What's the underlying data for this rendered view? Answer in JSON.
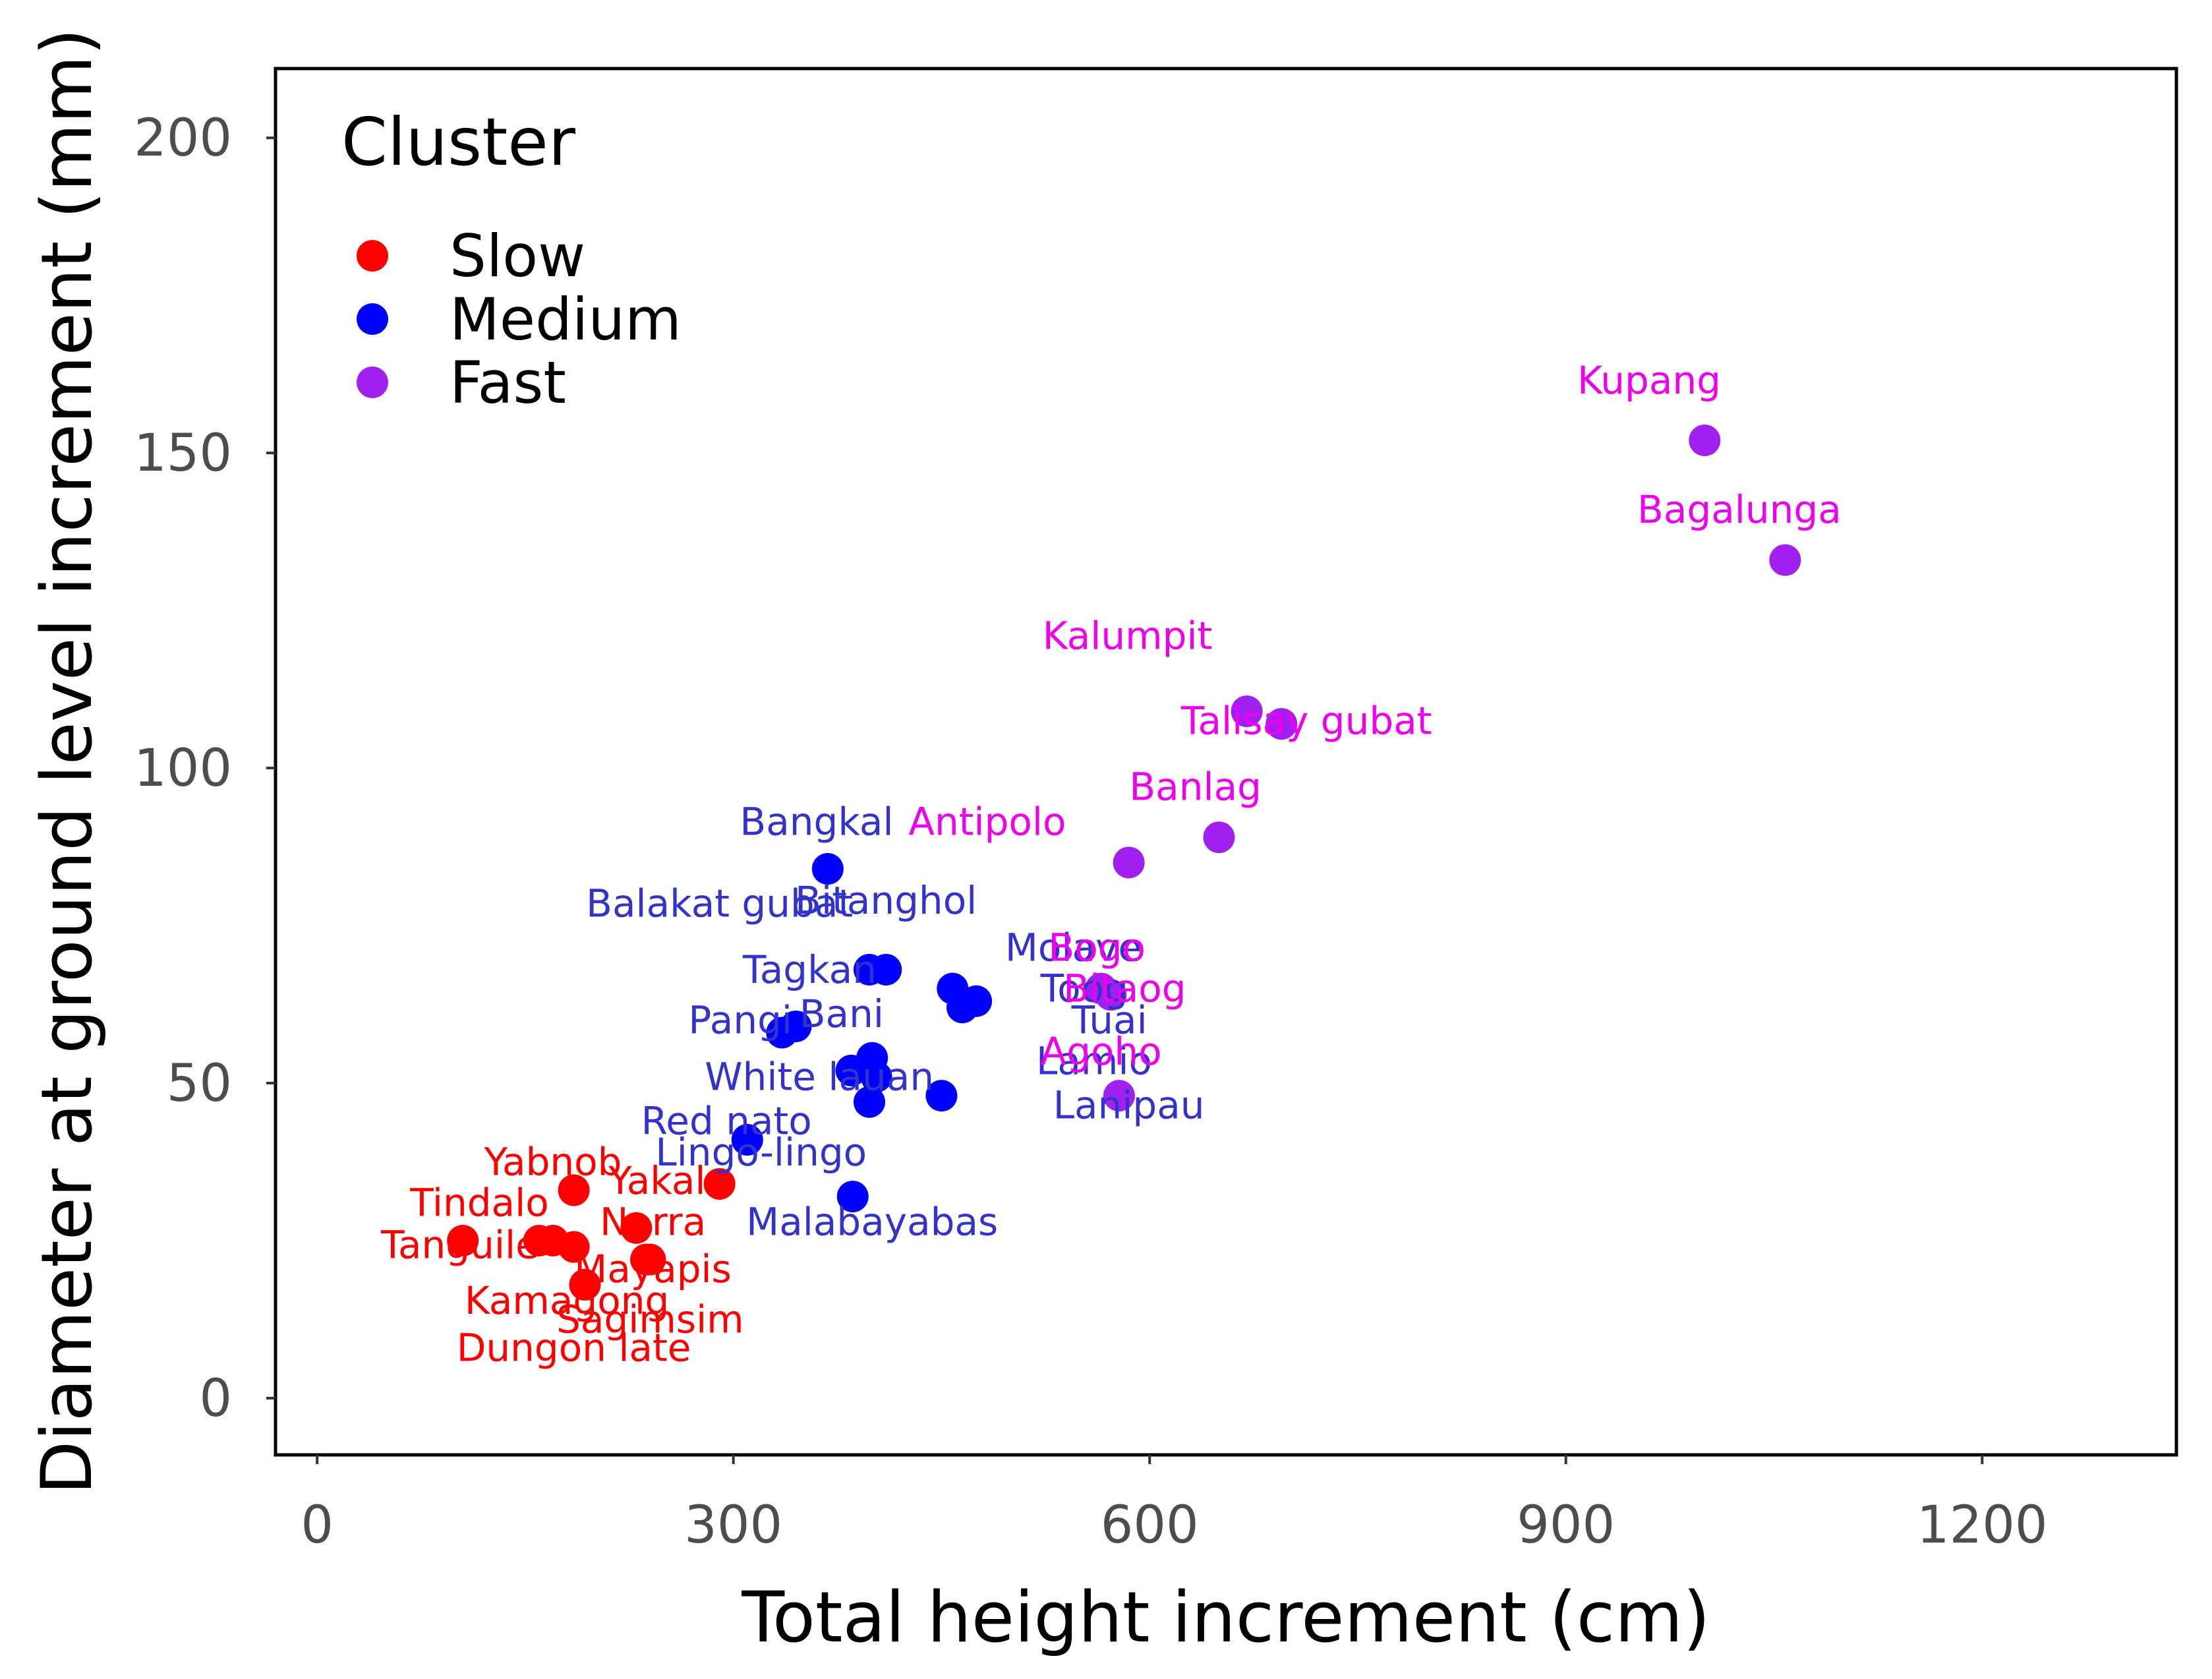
{
  "chart_data": {
    "type": "scatter",
    "xlabel": "Total height increment (cm)",
    "ylabel": "Diameter at ground level increment (mm)",
    "xlim": [
      -30,
      1340
    ],
    "ylim": [
      -9,
      211
    ],
    "xticks": [
      0,
      300,
      600,
      900,
      1200
    ],
    "yticks": [
      0,
      50,
      100,
      150,
      200
    ],
    "legend": {
      "title": "Cluster",
      "position": "top-left",
      "entries": [
        {
          "name": "Slow",
          "color": "#ff0000"
        },
        {
          "name": "Medium",
          "color": "#0000ff"
        },
        {
          "name": "Fast",
          "color": "#a020f0"
        }
      ]
    },
    "label_colors": {
      "Slow": "#ff0000",
      "Medium": "#3333cc",
      "Fast": "#ee00ee"
    },
    "series": [
      {
        "name": "Slow",
        "points": [
          {
            "x": 105,
            "y": 25,
            "label": "Tanguile"
          },
          {
            "x": 160,
            "y": 25,
            "label": "Tindalo"
          },
          {
            "x": 170,
            "y": 25,
            "label": "Kamagong"
          },
          {
            "x": 185,
            "y": 24,
            "label": "Dungon late"
          },
          {
            "x": 185,
            "y": 33,
            "label": "Yabnob"
          },
          {
            "x": 193,
            "y": 18,
            "label": "Dungon late"
          },
          {
            "x": 230,
            "y": 27,
            "label": "Yakal"
          },
          {
            "x": 237,
            "y": 22,
            "label": "Mayapis"
          },
          {
            "x": 240,
            "y": 22,
            "label": "Sagimsim"
          },
          {
            "x": 290,
            "y": 34,
            "label": "Narra"
          }
        ]
      },
      {
        "name": "Medium",
        "points": [
          {
            "x": 368,
            "y": 84,
            "label": "Bangkal"
          },
          {
            "x": 398,
            "y": 68,
            "label": "Balakat gubat"
          },
          {
            "x": 410,
            "y": 68,
            "label": "Bitanghol"
          },
          {
            "x": 335,
            "y": 58,
            "label": "Tagkan"
          },
          {
            "x": 345,
            "y": 59,
            "label": "Pangi"
          },
          {
            "x": 385,
            "y": 52,
            "label": "Bani"
          },
          {
            "x": 400,
            "y": 54,
            "label": "Bani"
          },
          {
            "x": 403,
            "y": 51,
            "label": "White lauan"
          },
          {
            "x": 398,
            "y": 47,
            "label": "Lamio"
          },
          {
            "x": 310,
            "y": 41,
            "label": "Red nato"
          },
          {
            "x": 386,
            "y": 32,
            "label": "Malabayabas"
          },
          {
            "x": 450,
            "y": 48,
            "label": "Lanipau"
          },
          {
            "x": 458,
            "y": 65,
            "label": "Molave"
          },
          {
            "x": 465,
            "y": 62,
            "label": "Tuai"
          },
          {
            "x": 475,
            "y": 63,
            "label": "Toog"
          }
        ]
      },
      {
        "name": "Fast",
        "points": [
          {
            "x": 565,
            "y": 65,
            "label": "Bogo"
          },
          {
            "x": 572,
            "y": 64,
            "label": "Bitaog"
          },
          {
            "x": 578,
            "y": 48,
            "label": "Agoho"
          },
          {
            "x": 585,
            "y": 85,
            "label": "Antipolo"
          },
          {
            "x": 650,
            "y": 89,
            "label": "Banlag"
          },
          {
            "x": 670,
            "y": 109,
            "label": "Kalumpit"
          },
          {
            "x": 695,
            "y": 107,
            "label": "Talisay gubat"
          },
          {
            "x": 1000,
            "y": 152,
            "label": "Kupang"
          },
          {
            "x": 1058,
            "y": 133,
            "label": "Bagalunga"
          }
        ]
      }
    ],
    "annotations": [
      {
        "text": "Tanguile",
        "x": 103,
        "y": 24.3,
        "series": "Slow"
      },
      {
        "text": "Tindalo",
        "x": 117,
        "y": 31,
        "series": "Slow"
      },
      {
        "text": "Yabnob",
        "x": 170,
        "y": 37.5,
        "series": "Slow"
      },
      {
        "text": "Yakal",
        "x": 245,
        "y": 34.5,
        "series": "Slow"
      },
      {
        "text": "Narra",
        "x": 242,
        "y": 28,
        "series": "Slow"
      },
      {
        "text": "Mayapis",
        "x": 242,
        "y": 20.5,
        "series": "Slow"
      },
      {
        "text": "Kamagong",
        "x": 180,
        "y": 15.5,
        "series": "Slow"
      },
      {
        "text": "Sagimsim",
        "x": 240,
        "y": 12.5,
        "series": "Slow"
      },
      {
        "text": "Dungon late",
        "x": 185,
        "y": 8,
        "series": "Slow"
      },
      {
        "text": "Bangkal",
        "x": 360,
        "y": 91.5,
        "series": "Medium"
      },
      {
        "text": "Balakat gubat",
        "x": 290,
        "y": 78.5,
        "series": "Medium"
      },
      {
        "text": "Bitanghol",
        "x": 410,
        "y": 79,
        "series": "Medium"
      },
      {
        "text": "Tagkan",
        "x": 355,
        "y": 68,
        "series": "Medium"
      },
      {
        "text": "Molave",
        "x": 545,
        "y": 71.5,
        "series": "Medium"
      },
      {
        "text": "Toog",
        "x": 553,
        "y": 65,
        "series": "Medium"
      },
      {
        "text": "Pangi",
        "x": 305,
        "y": 60,
        "series": "Medium"
      },
      {
        "text": "Bani",
        "x": 378,
        "y": 61,
        "series": "Medium"
      },
      {
        "text": "Tuai",
        "x": 571,
        "y": 60,
        "series": "Medium"
      },
      {
        "text": "Lamio",
        "x": 560,
        "y": 53.5,
        "series": "Medium"
      },
      {
        "text": "White lauan",
        "x": 362,
        "y": 51,
        "series": "Medium"
      },
      {
        "text": "Lanipau",
        "x": 585,
        "y": 46.5,
        "series": "Medium"
      },
      {
        "text": "Red nato",
        "x": 295,
        "y": 44,
        "series": "Medium"
      },
      {
        "text": "Lingo-lingo",
        "x": 320,
        "y": 39,
        "series": "Medium"
      },
      {
        "text": "Malabayabas",
        "x": 400,
        "y": 28,
        "series": "Medium"
      },
      {
        "text": "Bogo",
        "x": 562,
        "y": 71.5,
        "series": "Fast"
      },
      {
        "text": "Bitaog",
        "x": 582,
        "y": 65,
        "series": "Fast"
      },
      {
        "text": "Agoho",
        "x": 565,
        "y": 55,
        "series": "Fast"
      },
      {
        "text": "Antipolo",
        "x": 483,
        "y": 91.5,
        "series": "Fast"
      },
      {
        "text": "Banlag",
        "x": 633,
        "y": 97,
        "series": "Fast"
      },
      {
        "text": "Kalumpit",
        "x": 584,
        "y": 121,
        "series": "Fast"
      },
      {
        "text": "Talisay gubat",
        "x": 713,
        "y": 107.5,
        "series": "Fast"
      },
      {
        "text": "Kupang",
        "x": 960,
        "y": 161.5,
        "series": "Fast"
      },
      {
        "text": "Bagalunga",
        "x": 1025,
        "y": 141,
        "series": "Fast"
      }
    ]
  }
}
